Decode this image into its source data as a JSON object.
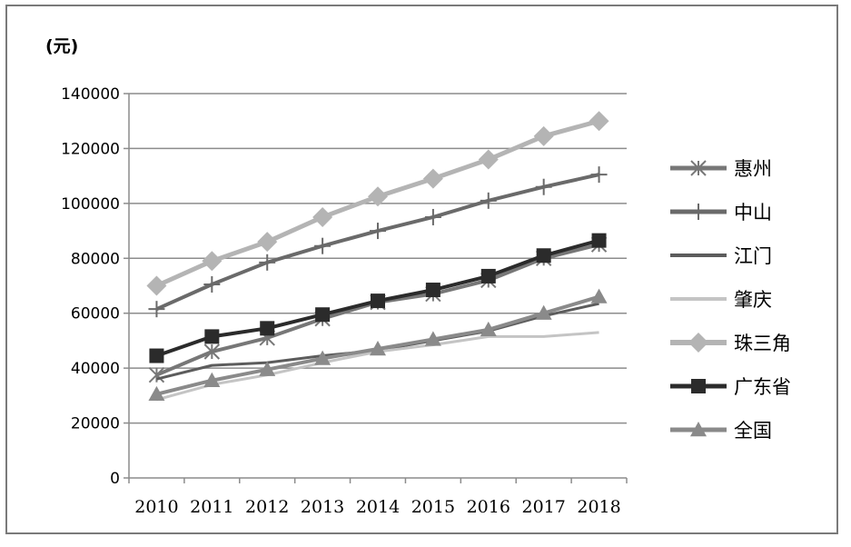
{
  "chart_data": {
    "type": "line",
    "unit_label": "(元)",
    "categories": [
      "2010",
      "2011",
      "2012",
      "2013",
      "2014",
      "2015",
      "2016",
      "2017",
      "2018"
    ],
    "ylim": [
      0,
      140000
    ],
    "yticks": [
      0,
      20000,
      40000,
      60000,
      80000,
      100000,
      120000,
      140000
    ],
    "grid": true,
    "legend_position": "right",
    "series": [
      {
        "name": "惠州",
        "color": "#777777",
        "marker": "asterisk",
        "width": 4,
        "values": [
          37500,
          46000,
          51000,
          58000,
          64000,
          67000,
          72000,
          80000,
          85000
        ]
      },
      {
        "name": "中山",
        "color": "#6a6a6a",
        "marker": "plus",
        "width": 4,
        "values": [
          61500,
          70500,
          78500,
          84500,
          90000,
          95000,
          101000,
          106000,
          110500
        ]
      },
      {
        "name": "江门",
        "color": "#5c5c5c",
        "marker": "none",
        "width": 3,
        "values": [
          36000,
          41000,
          42000,
          44500,
          46500,
          50000,
          53500,
          59000,
          63500
        ]
      },
      {
        "name": "肇庆",
        "color": "#c4c4c4",
        "marker": "none",
        "width": 3,
        "values": [
          28500,
          34000,
          37500,
          42000,
          46000,
          48500,
          51500,
          51500,
          53000
        ]
      },
      {
        "name": "珠三角",
        "color": "#b4b4b4",
        "marker": "diamond",
        "width": 5,
        "values": [
          70000,
          79000,
          86000,
          95000,
          102500,
          109000,
          116000,
          124500,
          130000
        ]
      },
      {
        "name": "广东省",
        "color": "#2b2b2b",
        "marker": "square",
        "width": 4,
        "values": [
          44500,
          51500,
          54500,
          59500,
          64500,
          68500,
          73500,
          81000,
          86500
        ]
      },
      {
        "name": "全国",
        "color": "#8a8a8a",
        "marker": "triangle",
        "width": 4,
        "values": [
          30500,
          35500,
          39500,
          43500,
          47000,
          50500,
          54000,
          60000,
          66000
        ]
      }
    ]
  }
}
